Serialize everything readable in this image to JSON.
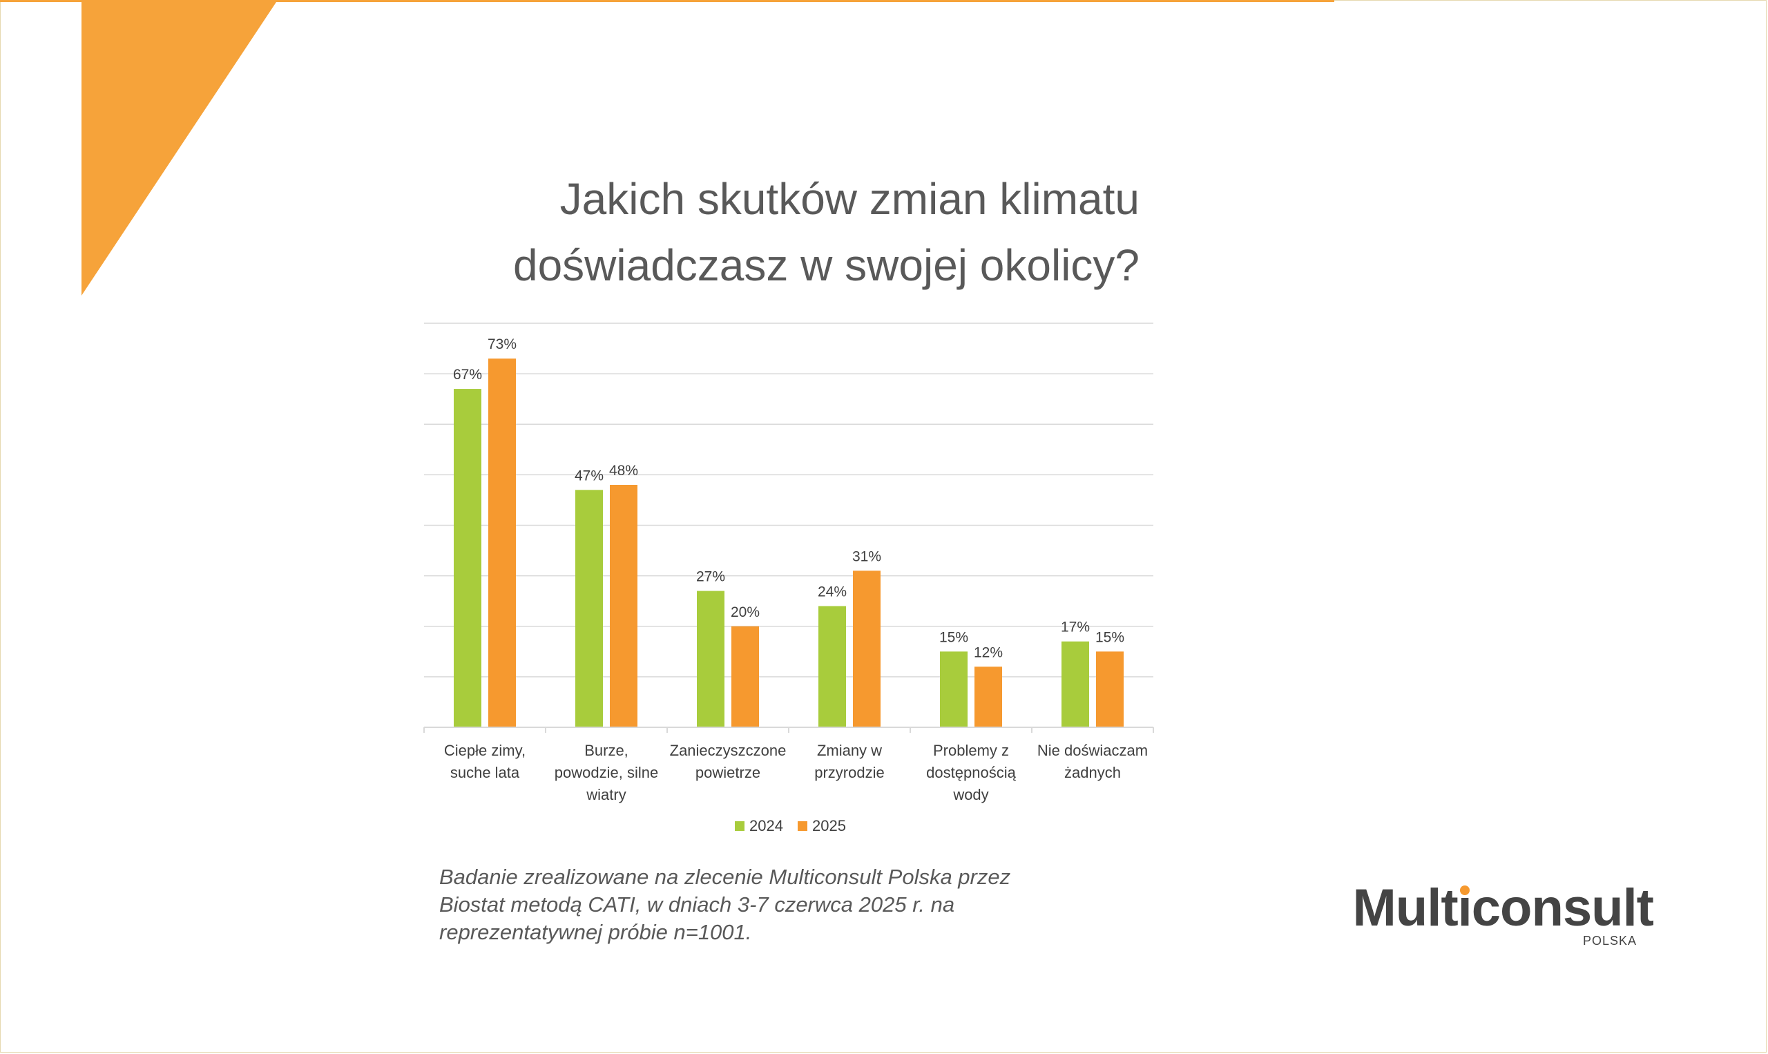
{
  "title": {
    "line1": "Jakich skutków zmian klimatu",
    "line2": "doświadczasz w swojej okolicy?"
  },
  "chart_data": {
    "type": "bar",
    "categories": [
      [
        "Ciepłe zimy,",
        "suche lata"
      ],
      [
        "Burze,",
        "powodzie, silne",
        "wiatry"
      ],
      [
        "Zanieczyszczone",
        "powietrze"
      ],
      [
        "Zmiany w",
        "przyrodzie"
      ],
      [
        "Problemy z",
        "dostępnością",
        "wody"
      ],
      [
        "Nie doświaczam",
        "żadnych"
      ]
    ],
    "series": [
      {
        "name": "2024",
        "color": "#a8cc3c",
        "values": [
          67,
          47,
          27,
          24,
          15,
          17
        ],
        "labels": [
          "67%",
          "47%",
          "27%",
          "24%",
          "15%",
          "17%"
        ]
      },
      {
        "name": "2025",
        "color": "#f6992f",
        "values": [
          73,
          48,
          20,
          31,
          12,
          15
        ],
        "labels": [
          "73%",
          "48%",
          "20%",
          "31%",
          "12%",
          "15%"
        ]
      }
    ],
    "ylim": [
      0,
      80
    ],
    "grid": true,
    "legend_position": "bottom"
  },
  "footnote": {
    "line1": "Badanie zrealizowane na zlecenie Multiconsult Polska przez",
    "line2": "Biostat metodą CATI, w dniach 3-7 czerwca 2025 r. na",
    "line3": "reprezentatywnej próbie n=1001."
  },
  "logo": {
    "wordmark": "Multiconsult",
    "subtitle": "POLSKA",
    "accent_color": "#f6992f"
  },
  "colors": {
    "accent_orange": "#f6a33a",
    "title_gray": "#595959"
  }
}
